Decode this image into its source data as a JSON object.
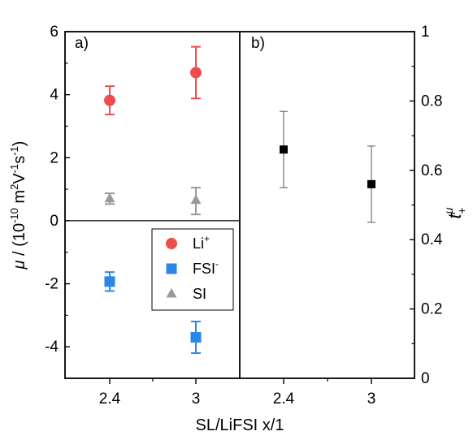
{
  "chart_data": [
    {
      "panel": "a)",
      "type": "scatter",
      "x_categories": [
        "2.4",
        "3"
      ],
      "xlabel": "SL/LiFSI x/1",
      "ylabel_parts": {
        "mu": "μ",
        "main": " / (10",
        "exp1": "-10",
        "unit": " m",
        "exp2": "2",
        "v": "V",
        "exp3": "-1",
        "s": "s",
        "exp4": "-1",
        "close": ")"
      },
      "ylim": [
        -5,
        6
      ],
      "yticks": [
        -4,
        -2,
        0,
        2,
        4,
        6
      ],
      "zero_line": true,
      "legend_position": "lower-right",
      "series": [
        {
          "name": "Li",
          "name_sup": "+",
          "color": "#ef4d4d",
          "marker": "circle",
          "values": [
            3.82,
            4.7
          ],
          "err_low": [
            0.45,
            0.82
          ],
          "err_high": [
            0.45,
            0.82
          ]
        },
        {
          "name": "FSI",
          "name_sup": "-",
          "color": "#2a86e8",
          "marker": "square",
          "values": [
            -1.93,
            -3.7
          ],
          "err_low": [
            0.3,
            0.5
          ],
          "err_high": [
            0.3,
            0.5
          ]
        },
        {
          "name": "SI",
          "name_sup": "",
          "color": "#9a9a9a",
          "marker": "triangle",
          "values": [
            0.7,
            0.65
          ],
          "err_low": [
            0.17,
            0.45
          ],
          "err_high": [
            0.17,
            0.4
          ]
        }
      ]
    },
    {
      "panel": "b)",
      "type": "scatter",
      "x_categories": [
        "2.4",
        "3"
      ],
      "ylabel_parts": {
        "t": "t",
        "sup": "μ",
        "sub": "+"
      },
      "ylim": [
        0,
        1
      ],
      "yticks": [
        0,
        0.2,
        0.4,
        0.6,
        0.8,
        1
      ],
      "ytick_labels": [
        "0",
        "0.2",
        "0.4",
        "0.6",
        "0.8",
        "1"
      ],
      "axis_side": "right",
      "series": [
        {
          "name": "",
          "color": "#000000",
          "marker": "square",
          "values": [
            0.66,
            0.56
          ],
          "err_low": [
            0.11,
            0.11
          ],
          "err_high": [
            0.11,
            0.11
          ]
        }
      ]
    }
  ]
}
